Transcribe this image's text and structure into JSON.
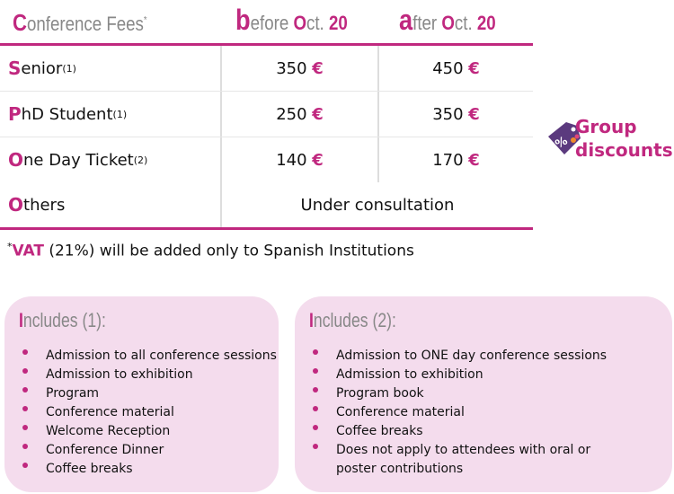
{
  "header": {
    "col0_initial": "C",
    "col0_rest": "onference Fees",
    "col0_mark": "*",
    "col1_initial": "b",
    "col1_rest": "efore ",
    "col1_oct_initial": "O",
    "col1_oct_rest": "ct. ",
    "col1_day": "20",
    "col2_initial": "a",
    "col2_rest": "fter ",
    "col2_oct_initial": "O",
    "col2_oct_rest": "ct. ",
    "col2_day": "20"
  },
  "rows": [
    {
      "initial": "S",
      "rest": "enior",
      "note": "(1)",
      "before": "350",
      "after": "450",
      "currency": "€"
    },
    {
      "initial": "P",
      "rest": "hD Student",
      "note": "(1)",
      "before": "250",
      "after": "350",
      "currency": "€"
    },
    {
      "initial": "O",
      "rest": "ne Day Ticket",
      "note": "(2)",
      "before": "140",
      "after": "170",
      "currency": "€"
    }
  ],
  "others": {
    "initial": "O",
    "rest": "thers",
    "value": "Under consultation"
  },
  "vat": {
    "mark": "*",
    "bold": "VAT",
    "rest": " (21%) will be added only to Spanish Institutions"
  },
  "group": {
    "line1": "Group",
    "line2": "discounts",
    "tag": "%"
  },
  "includes1": {
    "initial": "I",
    "rest": "ncludes (1):",
    "items": [
      "Admission to all conference sessions",
      "Admission to exhibition",
      "Program",
      "Conference material",
      "Welcome Reception",
      "Conference Dinner",
      "Coffee breaks"
    ]
  },
  "includes2": {
    "initial": "I",
    "rest": "ncludes (2):",
    "items": [
      "Admission to ONE day conference sessions",
      "Admission to exhibition",
      "Program book",
      "Conference material",
      "Coffee breaks",
      "Does not apply to attendees with oral or poster contributions"
    ]
  },
  "colors": {
    "accent": "#c0287f",
    "box": "#f4dced",
    "tag": "#5b3a7e"
  }
}
